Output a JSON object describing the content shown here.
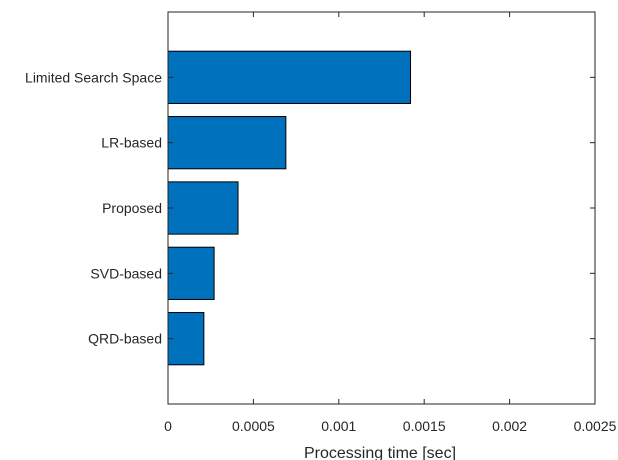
{
  "chart_data": {
    "type": "bar",
    "orientation": "horizontal",
    "categories": [
      "Limited Search Space",
      "LR-based",
      "Proposed",
      "SVD-based",
      "QRD-based"
    ],
    "values": [
      0.00142,
      0.00069,
      0.00041,
      0.00027,
      0.00021
    ],
    "xlabel": "Processing time [sec]",
    "ylabel": "",
    "title": "",
    "xlim": [
      0,
      0.0025
    ],
    "xticks": [
      "0",
      "0.0005",
      "0.001",
      "0.0015",
      "0.002",
      "0.0025"
    ],
    "grid": false,
    "bar_color": "#0072BD",
    "bar_edge_color": "#000000"
  }
}
